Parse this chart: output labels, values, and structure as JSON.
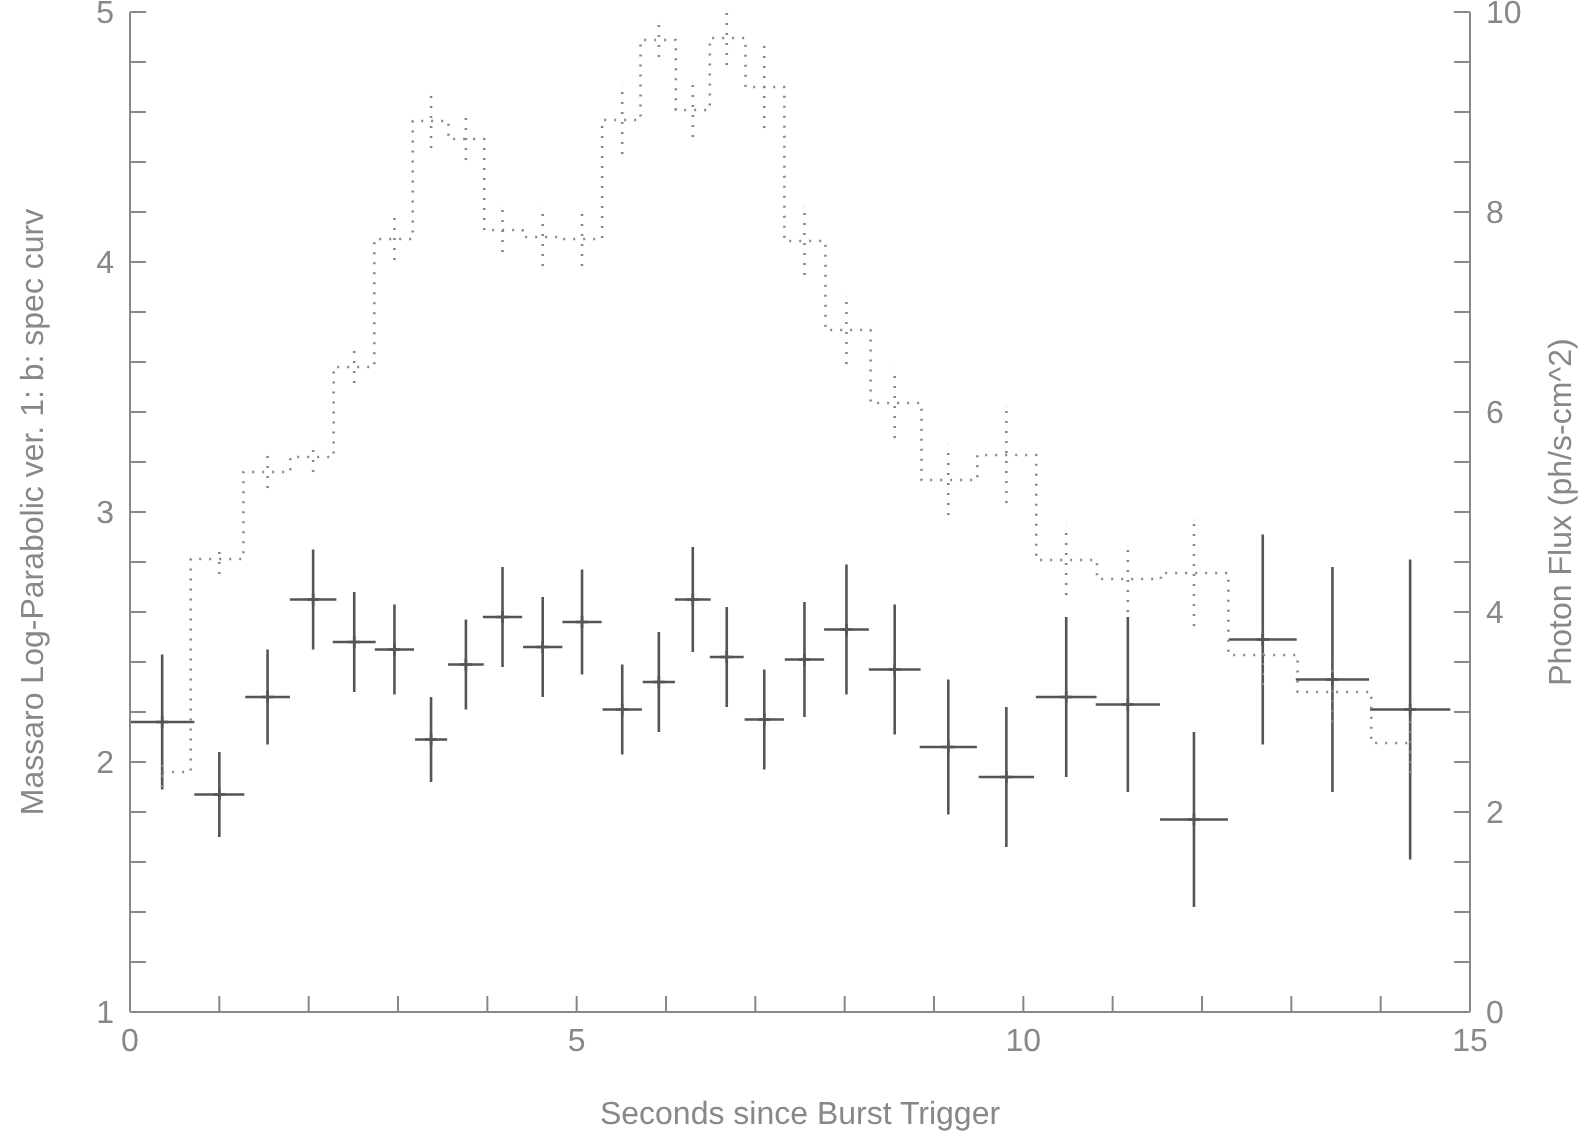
{
  "chart_data": {
    "type": "scatter",
    "xlabel": "Seconds since Burst Trigger",
    "ylabel": "Massaro Log-Parabolic ver. 1: b: spec curv",
    "y2label": "Photon Flux (ph/s-cm^2)",
    "x": [
      0.36,
      1.0,
      1.54,
      2.05,
      2.51,
      2.96,
      3.37,
      3.76,
      4.17,
      4.62,
      5.06,
      5.51,
      5.92,
      6.3,
      6.68,
      7.1,
      7.55,
      8.02,
      8.56,
      9.16,
      9.81,
      10.48,
      11.17,
      11.91,
      12.68,
      13.46,
      14.33
    ],
    "xlim": [
      0,
      15
    ],
    "xticks": [
      0,
      {
        "value": 1,
        "label": null
      },
      {
        "value": 2,
        "label": null
      },
      {
        "value": 3,
        "label": null
      },
      {
        "value": 4,
        "label": null
      },
      5,
      {
        "value": 6,
        "label": null
      },
      {
        "value": 7,
        "label": null
      },
      {
        "value": 8,
        "label": null
      },
      {
        "value": 9,
        "label": null
      },
      10,
      {
        "value": 11,
        "label": null
      },
      {
        "value": 12,
        "label": null
      },
      {
        "value": 13,
        "label": null
      },
      {
        "value": 14,
        "label": null
      },
      15
    ],
    "ylim": [
      1,
      5
    ],
    "yticks": [
      1,
      {
        "value": 1.2,
        "label": null
      },
      {
        "value": 1.4,
        "label": null
      },
      {
        "value": 1.6,
        "label": null
      },
      {
        "value": 1.8,
        "label": null
      },
      2,
      {
        "value": 2.2,
        "label": null
      },
      {
        "value": 2.4,
        "label": null
      },
      {
        "value": 2.6,
        "label": null
      },
      {
        "value": 2.8,
        "label": null
      },
      3,
      {
        "value": 3.2,
        "label": null
      },
      {
        "value": 3.4,
        "label": null
      },
      {
        "value": 3.6,
        "label": null
      },
      {
        "value": 3.8,
        "label": null
      },
      4,
      {
        "value": 4.2,
        "label": null
      },
      {
        "value": 4.4,
        "label": null
      },
      {
        "value": 4.6,
        "label": null
      },
      {
        "value": 4.8,
        "label": null
      },
      5
    ],
    "y2lim": [
      0,
      10
    ],
    "y2ticks": [
      0,
      {
        "value": 0.5,
        "label": null
      },
      {
        "value": 1,
        "label": null
      },
      {
        "value": 1.5,
        "label": null
      },
      2,
      {
        "value": 2.5,
        "label": null
      },
      {
        "value": 3,
        "label": null
      },
      {
        "value": 3.5,
        "label": null
      },
      4,
      {
        "value": 4.5,
        "label": null
      },
      {
        "value": 5,
        "label": null
      },
      {
        "value": 5.5,
        "label": null
      },
      6,
      {
        "value": 6.5,
        "label": null
      },
      {
        "value": 7,
        "label": null
      },
      {
        "value": 7.5,
        "label": null
      },
      8,
      {
        "value": 8.5,
        "label": null
      },
      {
        "value": 9,
        "label": null
      },
      {
        "value": 9.5,
        "label": null
      },
      10
    ],
    "series": [
      {
        "color": "#555555",
        "marker": "cross",
        "values": [
          2.16,
          1.87,
          2.26,
          2.65,
          2.48,
          2.45,
          2.09,
          2.39,
          2.58,
          2.46,
          2.56,
          2.21,
          2.32,
          2.65,
          2.42,
          2.17,
          2.41,
          2.53,
          2.37,
          2.06,
          1.94,
          2.26,
          2.23,
          1.77,
          2.49,
          2.33,
          2.21
        ],
        "errors": [
          0.27,
          0.17,
          0.19,
          0.2,
          0.2,
          0.18,
          0.17,
          0.18,
          0.2,
          0.2,
          0.21,
          0.18,
          0.2,
          0.21,
          0.2,
          0.2,
          0.23,
          0.26,
          0.26,
          0.27,
          0.28,
          0.32,
          0.35,
          0.35,
          0.42,
          0.45,
          0.6
        ],
        "xerrors": [
          0.36,
          0.28,
          0.25,
          0.26,
          0.24,
          0.22,
          0.18,
          0.2,
          0.22,
          0.22,
          0.22,
          0.22,
          0.18,
          0.2,
          0.19,
          0.22,
          0.22,
          0.25,
          0.29,
          0.32,
          0.31,
          0.34,
          0.36,
          0.38,
          0.38,
          0.41,
          0.45
        ]
      },
      {
        "type": "step",
        "axis": "y2",
        "marker": "none",
        "color": "#888888",
        "line_style": "dotted",
        "values": [
          2.4,
          4.53,
          5.4,
          5.55,
          6.45,
          7.73,
          8.91,
          8.73,
          7.82,
          7.75,
          7.73,
          8.92,
          9.72,
          9.02,
          9.74,
          9.25,
          7.71,
          6.82,
          6.09,
          5.32,
          5.57,
          4.52,
          4.33,
          4.39,
          3.57,
          3.2,
          2.69
        ],
        "errors": [
          0.15,
          0.15,
          0.16,
          0.15,
          0.16,
          0.21,
          0.27,
          0.21,
          0.22,
          0.29,
          0.27,
          0.34,
          0.17,
          0.27,
          0.27,
          0.41,
          0.34,
          0.34,
          0.35,
          0.35,
          0.48,
          0.35,
          0.33,
          0.53,
          0.3,
          0.3,
          0.3
        ]
      }
    ]
  }
}
